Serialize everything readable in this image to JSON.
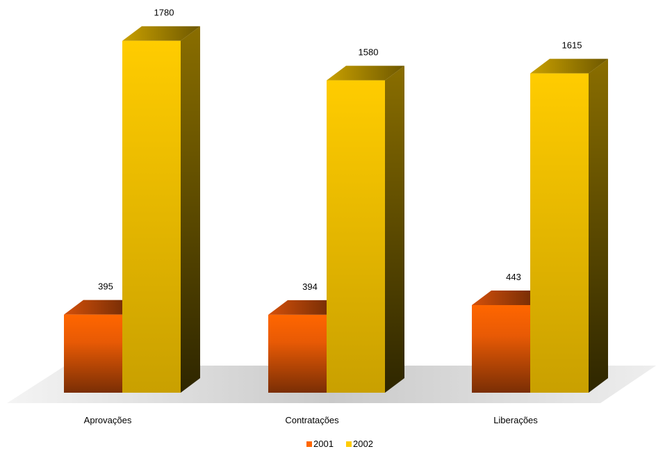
{
  "chart_data": {
    "type": "bar",
    "style": "3d-clustered-column",
    "categories": [
      "Aprovações",
      "Contratações",
      "Liberações"
    ],
    "series": [
      {
        "name": "2001",
        "values": [
          395,
          394,
          443
        ],
        "color": "#ff6600",
        "dark": "#7a2e05"
      },
      {
        "name": "2002",
        "values": [
          1780,
          1580,
          1615
        ],
        "color": "#ffcc00",
        "dark": "#7a6200"
      }
    ],
    "title": "",
    "xlabel": "",
    "ylabel": "",
    "ylim": [
      0,
      1800
    ],
    "grid": false,
    "legend_position": "bottom",
    "floor_color": "#c8c8c8"
  }
}
